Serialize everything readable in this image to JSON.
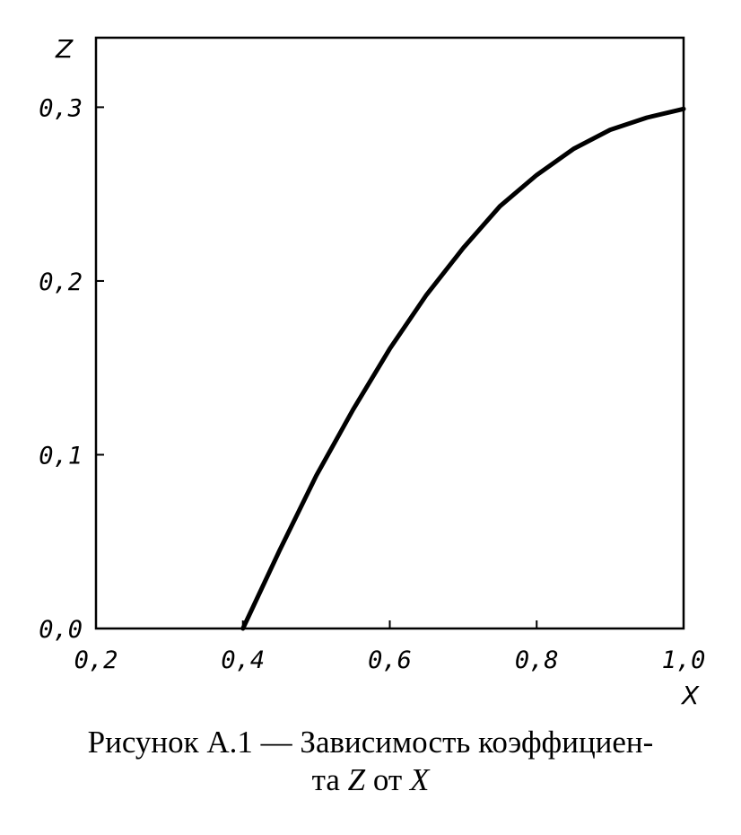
{
  "chart_data": {
    "type": "line",
    "xlabel": "X",
    "ylabel": "Z",
    "xlim": [
      0.2,
      1.0
    ],
    "ylim": [
      0.0,
      0.34
    ],
    "xticks": [
      "0,2",
      "0,4",
      "0,6",
      "0,8",
      "1,0"
    ],
    "yticks": [
      "0,0",
      "0,1",
      "0,2",
      "0,3"
    ],
    "grid": false,
    "series": [
      {
        "x": [
          0.4,
          0.45,
          0.5,
          0.55,
          0.6,
          0.65,
          0.7,
          0.75,
          0.8,
          0.85,
          0.9,
          0.95,
          1.0
        ],
        "y": [
          0.0,
          0.045,
          0.088,
          0.126,
          0.161,
          0.192,
          0.219,
          0.243,
          0.261,
          0.276,
          0.287,
          0.294,
          0.299
        ]
      }
    ]
  },
  "caption": {
    "line1": "Рисунок А.1 — Зависимость коэффициен-",
    "line2_pre": "та ",
    "line2_z": "Z",
    "line2_mid": " от ",
    "line2_x": "X"
  }
}
